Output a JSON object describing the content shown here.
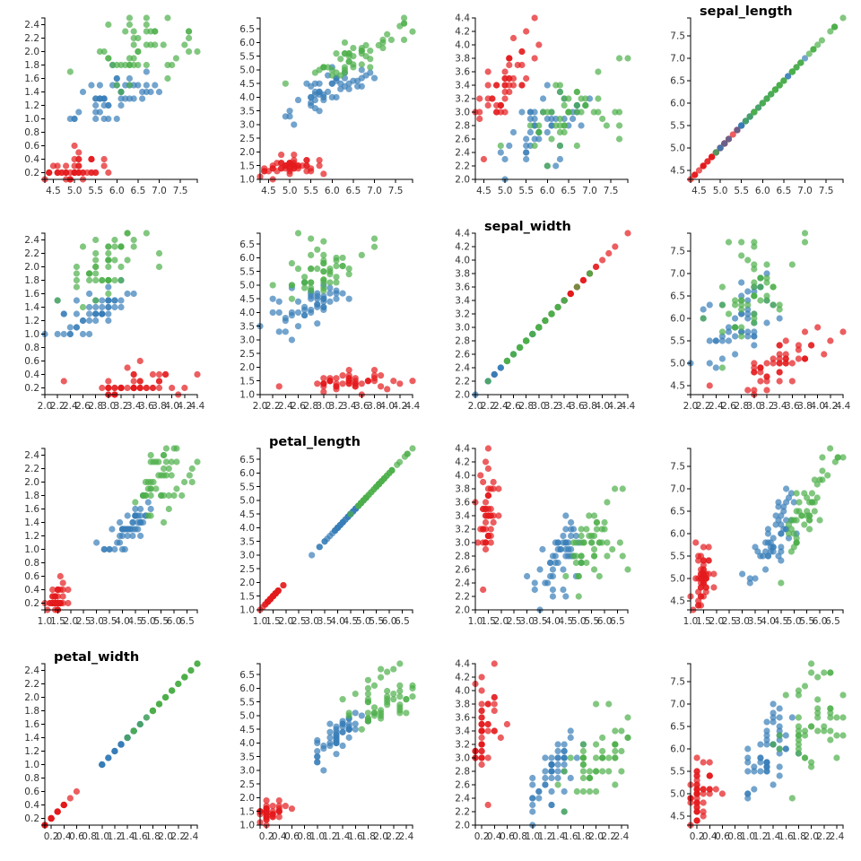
{
  "chart_data": {
    "type": "scatter",
    "layout": "scatterplot-matrix",
    "variables": [
      "sepal_length",
      "sepal_width",
      "petal_length",
      "petal_width"
    ],
    "row_x_variables": [
      "sepal_length",
      "sepal_width",
      "petal_length",
      "petal_width"
    ],
    "column_y_variables": [
      "petal_width",
      "petal_length",
      "sepal_width",
      "sepal_length"
    ],
    "domains": {
      "sepal_length": [
        4.3,
        7.9
      ],
      "sepal_width": [
        2.0,
        4.4
      ],
      "petal_length": [
        1.0,
        6.9
      ],
      "petal_width": [
        0.1,
        2.5
      ]
    },
    "ticks": {
      "sepal_length": [
        "4.5",
        "5.0",
        "5.5",
        "6.0",
        "6.5",
        "7.0",
        "7.5"
      ],
      "sepal_width": [
        "2.0",
        "2.2",
        "2.4",
        "2.6",
        "2.8",
        "3.0",
        "3.2",
        "3.4",
        "3.6",
        "3.8",
        "4.0",
        "4.2",
        "4.4"
      ],
      "petal_length": [
        "1.0",
        "1.5",
        "2.0",
        "2.5",
        "3.0",
        "3.5",
        "4.0",
        "4.5",
        "5.0",
        "5.5",
        "6.0",
        "6.5"
      ],
      "petal_width": [
        "0.2",
        "0.4",
        "0.6",
        "0.8",
        "1.0",
        "1.2",
        "1.4",
        "1.6",
        "1.8",
        "2.0",
        "2.2",
        "2.4"
      ]
    },
    "grid": false,
    "legend": "none",
    "point_opacity": 0.7,
    "series": [
      {
        "color": "#e41a1c",
        "points": [
          [
            5.1,
            3.5,
            1.4,
            0.2
          ],
          [
            4.9,
            3.0,
            1.4,
            0.2
          ],
          [
            4.7,
            3.2,
            1.3,
            0.2
          ],
          [
            4.6,
            3.1,
            1.5,
            0.2
          ],
          [
            5.0,
            3.6,
            1.4,
            0.2
          ],
          [
            5.4,
            3.9,
            1.7,
            0.4
          ],
          [
            4.6,
            3.4,
            1.4,
            0.3
          ],
          [
            5.0,
            3.4,
            1.5,
            0.2
          ],
          [
            4.4,
            2.9,
            1.4,
            0.2
          ],
          [
            4.9,
            3.1,
            1.5,
            0.1
          ],
          [
            5.4,
            3.7,
            1.5,
            0.2
          ],
          [
            4.8,
            3.4,
            1.6,
            0.2
          ],
          [
            4.8,
            3.0,
            1.4,
            0.1
          ],
          [
            4.3,
            3.0,
            1.1,
            0.1
          ],
          [
            5.8,
            4.0,
            1.2,
            0.2
          ],
          [
            5.7,
            4.4,
            1.5,
            0.4
          ],
          [
            5.4,
            3.9,
            1.3,
            0.4
          ],
          [
            5.1,
            3.5,
            1.4,
            0.3
          ],
          [
            5.7,
            3.8,
            1.7,
            0.3
          ],
          [
            5.1,
            3.8,
            1.5,
            0.3
          ],
          [
            5.4,
            3.4,
            1.7,
            0.2
          ],
          [
            5.1,
            3.7,
            1.5,
            0.4
          ],
          [
            4.6,
            3.6,
            1.0,
            0.2
          ],
          [
            5.1,
            3.3,
            1.7,
            0.5
          ],
          [
            4.8,
            3.4,
            1.9,
            0.2
          ],
          [
            5.0,
            3.0,
            1.6,
            0.2
          ],
          [
            5.0,
            3.4,
            1.6,
            0.4
          ],
          [
            5.2,
            3.5,
            1.5,
            0.2
          ],
          [
            5.2,
            3.4,
            1.4,
            0.2
          ],
          [
            4.7,
            3.2,
            1.6,
            0.2
          ],
          [
            4.8,
            3.1,
            1.6,
            0.2
          ],
          [
            5.4,
            3.4,
            1.5,
            0.4
          ],
          [
            5.2,
            4.1,
            1.5,
            0.1
          ],
          [
            5.5,
            4.2,
            1.4,
            0.2
          ],
          [
            4.9,
            3.1,
            1.5,
            0.1
          ],
          [
            5.0,
            3.2,
            1.2,
            0.2
          ],
          [
            5.5,
            3.5,
            1.3,
            0.2
          ],
          [
            4.9,
            3.1,
            1.5,
            0.1
          ],
          [
            4.4,
            3.0,
            1.3,
            0.2
          ],
          [
            5.1,
            3.4,
            1.5,
            0.2
          ],
          [
            5.0,
            3.5,
            1.3,
            0.3
          ],
          [
            4.5,
            2.3,
            1.3,
            0.3
          ],
          [
            4.4,
            3.2,
            1.3,
            0.2
          ],
          [
            5.0,
            3.5,
            1.6,
            0.6
          ],
          [
            5.1,
            3.8,
            1.9,
            0.4
          ],
          [
            4.8,
            3.0,
            1.4,
            0.3
          ],
          [
            5.1,
            3.8,
            1.6,
            0.2
          ],
          [
            4.6,
            3.2,
            1.4,
            0.2
          ],
          [
            5.3,
            3.7,
            1.5,
            0.2
          ],
          [
            5.0,
            3.3,
            1.4,
            0.2
          ]
        ]
      },
      {
        "color": "#377eb8",
        "points": [
          [
            7.0,
            3.2,
            4.7,
            1.4
          ],
          [
            6.4,
            3.2,
            4.5,
            1.5
          ],
          [
            6.9,
            3.1,
            4.9,
            1.5
          ],
          [
            5.5,
            2.3,
            4.0,
            1.3
          ],
          [
            6.5,
            2.8,
            4.6,
            1.5
          ],
          [
            5.7,
            2.8,
            4.5,
            1.3
          ],
          [
            6.3,
            3.3,
            4.7,
            1.6
          ],
          [
            4.9,
            2.4,
            3.3,
            1.0
          ],
          [
            6.6,
            2.9,
            4.6,
            1.3
          ],
          [
            5.2,
            2.7,
            3.9,
            1.4
          ],
          [
            5.0,
            2.0,
            3.5,
            1.0
          ],
          [
            5.9,
            3.0,
            4.2,
            1.5
          ],
          [
            6.0,
            2.2,
            4.0,
            1.0
          ],
          [
            6.1,
            2.9,
            4.7,
            1.4
          ],
          [
            5.6,
            2.9,
            3.6,
            1.3
          ],
          [
            6.7,
            3.1,
            4.4,
            1.4
          ],
          [
            5.6,
            3.0,
            4.5,
            1.5
          ],
          [
            5.8,
            2.7,
            4.1,
            1.0
          ],
          [
            6.2,
            2.2,
            4.5,
            1.5
          ],
          [
            5.6,
            2.5,
            3.9,
            1.1
          ],
          [
            5.9,
            3.2,
            4.8,
            1.8
          ],
          [
            6.1,
            2.8,
            4.0,
            1.3
          ],
          [
            6.3,
            2.5,
            4.9,
            1.5
          ],
          [
            6.1,
            2.8,
            4.7,
            1.2
          ],
          [
            6.4,
            2.9,
            4.3,
            1.3
          ],
          [
            6.6,
            3.0,
            4.4,
            1.4
          ],
          [
            6.8,
            2.8,
            4.8,
            1.4
          ],
          [
            6.7,
            3.0,
            5.0,
            1.7
          ],
          [
            6.0,
            2.9,
            4.5,
            1.5
          ],
          [
            5.7,
            2.6,
            3.5,
            1.0
          ],
          [
            5.5,
            2.4,
            3.8,
            1.1
          ],
          [
            5.5,
            2.4,
            3.7,
            1.0
          ],
          [
            5.8,
            2.7,
            3.9,
            1.2
          ],
          [
            6.0,
            2.7,
            5.1,
            1.6
          ],
          [
            5.4,
            3.0,
            4.5,
            1.5
          ],
          [
            6.0,
            3.4,
            4.5,
            1.6
          ],
          [
            6.7,
            3.1,
            4.7,
            1.5
          ],
          [
            6.3,
            2.3,
            4.4,
            1.3
          ],
          [
            5.6,
            3.0,
            4.1,
            1.3
          ],
          [
            5.5,
            2.5,
            4.0,
            1.3
          ],
          [
            5.5,
            2.6,
            4.4,
            1.2
          ],
          [
            6.1,
            3.0,
            4.6,
            1.4
          ],
          [
            5.8,
            2.6,
            4.0,
            1.2
          ],
          [
            5.0,
            2.3,
            3.3,
            1.0
          ],
          [
            5.6,
            2.7,
            4.2,
            1.3
          ],
          [
            5.7,
            3.0,
            4.2,
            1.2
          ],
          [
            5.7,
            2.9,
            4.2,
            1.3
          ],
          [
            6.2,
            2.9,
            4.3,
            1.3
          ],
          [
            5.1,
            2.5,
            3.0,
            1.1
          ],
          [
            5.7,
            2.8,
            4.1,
            1.3
          ]
        ]
      },
      {
        "color": "#4daf4a",
        "points": [
          [
            6.3,
            3.3,
            6.0,
            2.5
          ],
          [
            5.8,
            2.7,
            5.1,
            1.9
          ],
          [
            7.1,
            3.0,
            5.9,
            2.1
          ],
          [
            6.3,
            2.9,
            5.6,
            1.8
          ],
          [
            6.5,
            3.0,
            5.8,
            2.2
          ],
          [
            7.6,
            3.0,
            6.6,
            2.1
          ],
          [
            4.9,
            2.5,
            4.5,
            1.7
          ],
          [
            7.3,
            2.9,
            6.3,
            1.8
          ],
          [
            6.7,
            2.5,
            5.8,
            1.8
          ],
          [
            7.2,
            3.6,
            6.1,
            2.5
          ],
          [
            6.5,
            3.2,
            5.1,
            2.0
          ],
          [
            6.4,
            2.7,
            5.3,
            1.9
          ],
          [
            6.8,
            3.0,
            5.5,
            2.1
          ],
          [
            5.7,
            2.5,
            5.0,
            2.0
          ],
          [
            5.8,
            2.8,
            5.1,
            2.4
          ],
          [
            6.4,
            3.2,
            5.3,
            2.3
          ],
          [
            6.5,
            3.0,
            5.5,
            1.8
          ],
          [
            7.7,
            3.8,
            6.7,
            2.2
          ],
          [
            7.7,
            2.6,
            6.9,
            2.3
          ],
          [
            6.0,
            2.2,
            5.0,
            1.5
          ],
          [
            6.9,
            3.2,
            5.7,
            2.3
          ],
          [
            5.6,
            2.8,
            4.9,
            2.0
          ],
          [
            7.7,
            2.8,
            6.7,
            2.0
          ],
          [
            6.3,
            2.7,
            4.9,
            1.8
          ],
          [
            6.7,
            3.3,
            5.7,
            2.1
          ],
          [
            7.2,
            3.2,
            6.0,
            1.8
          ],
          [
            6.2,
            2.8,
            4.8,
            1.8
          ],
          [
            6.1,
            3.0,
            4.9,
            1.8
          ],
          [
            6.4,
            2.8,
            5.6,
            2.1
          ],
          [
            7.2,
            3.0,
            5.8,
            1.6
          ],
          [
            7.4,
            2.8,
            6.1,
            1.9
          ],
          [
            7.9,
            3.8,
            6.4,
            2.0
          ],
          [
            6.4,
            2.8,
            5.6,
            2.2
          ],
          [
            6.3,
            2.8,
            5.1,
            1.5
          ],
          [
            6.1,
            2.6,
            5.6,
            1.4
          ],
          [
            7.7,
            3.0,
            6.1,
            2.3
          ],
          [
            6.3,
            3.4,
            5.6,
            2.4
          ],
          [
            6.4,
            3.1,
            5.5,
            1.8
          ],
          [
            6.0,
            3.0,
            4.8,
            1.8
          ],
          [
            6.9,
            3.1,
            5.4,
            2.1
          ],
          [
            6.7,
            3.1,
            5.6,
            2.4
          ],
          [
            6.9,
            3.1,
            5.1,
            2.3
          ],
          [
            5.8,
            2.7,
            5.1,
            1.9
          ],
          [
            6.8,
            3.2,
            5.9,
            2.3
          ],
          [
            6.7,
            3.3,
            5.7,
            2.5
          ],
          [
            6.7,
            3.0,
            5.2,
            2.3
          ],
          [
            6.3,
            2.5,
            5.0,
            1.9
          ],
          [
            6.5,
            3.0,
            5.2,
            2.0
          ],
          [
            6.2,
            3.4,
            5.4,
            2.3
          ],
          [
            5.9,
            3.0,
            5.1,
            1.8
          ]
        ]
      }
    ]
  }
}
